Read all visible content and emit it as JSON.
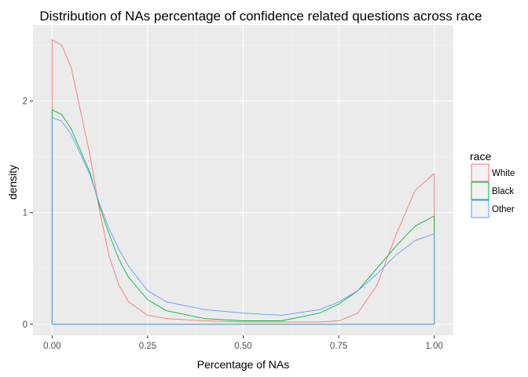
{
  "chart_data": {
    "type": "area",
    "title": "Distribution of NAs percentage of confidence related questions across race",
    "xlabel": "Percentage of NAs",
    "ylabel": "density",
    "xlim": [
      -0.05,
      1.05
    ],
    "ylim": [
      -0.1,
      2.68
    ],
    "x_ticks": [
      {
        "value": 0,
        "label": "0.00"
      },
      {
        "value": 0.25,
        "label": "0.25"
      },
      {
        "value": 0.5,
        "label": "0.50"
      },
      {
        "value": 0.75,
        "label": "0.75"
      },
      {
        "value": 1,
        "label": "1.00"
      }
    ],
    "y_ticks": [
      {
        "value": 0,
        "label": "0"
      },
      {
        "value": 1,
        "label": "1"
      },
      {
        "value": 2,
        "label": "2"
      }
    ],
    "grid": true,
    "legend": {
      "title": "race",
      "position": "right"
    },
    "series": [
      {
        "name": "White",
        "color": "#F8766D",
        "x": [
          0,
          0.025,
          0.05,
          0.075,
          0.1,
          0.125,
          0.15,
          0.175,
          0.2,
          0.25,
          0.3,
          0.4,
          0.5,
          0.6,
          0.7,
          0.75,
          0.8,
          0.85,
          0.9,
          0.95,
          1.0
        ],
        "y": [
          2.55,
          2.5,
          2.3,
          1.9,
          1.5,
          1.0,
          0.6,
          0.35,
          0.2,
          0.08,
          0.05,
          0.03,
          0.02,
          0.02,
          0.02,
          0.03,
          0.1,
          0.35,
          0.8,
          1.2,
          1.35
        ]
      },
      {
        "name": "Black",
        "color": "#00BA38",
        "x": [
          0,
          0.025,
          0.05,
          0.075,
          0.1,
          0.125,
          0.15,
          0.175,
          0.2,
          0.25,
          0.3,
          0.4,
          0.5,
          0.6,
          0.7,
          0.75,
          0.8,
          0.85,
          0.9,
          0.95,
          1.0
        ],
        "y": [
          1.92,
          1.88,
          1.75,
          1.55,
          1.35,
          1.05,
          0.8,
          0.58,
          0.42,
          0.22,
          0.12,
          0.05,
          0.03,
          0.03,
          0.1,
          0.18,
          0.3,
          0.5,
          0.7,
          0.88,
          0.97
        ]
      },
      {
        "name": "Other",
        "color": "#619CFF",
        "x": [
          0,
          0.025,
          0.05,
          0.075,
          0.1,
          0.125,
          0.15,
          0.175,
          0.2,
          0.25,
          0.3,
          0.4,
          0.5,
          0.6,
          0.7,
          0.75,
          0.8,
          0.85,
          0.9,
          0.95,
          1.0
        ],
        "y": [
          1.85,
          1.82,
          1.7,
          1.52,
          1.33,
          1.07,
          0.85,
          0.67,
          0.52,
          0.3,
          0.2,
          0.13,
          0.1,
          0.08,
          0.13,
          0.2,
          0.3,
          0.45,
          0.62,
          0.75,
          0.81
        ]
      }
    ]
  }
}
